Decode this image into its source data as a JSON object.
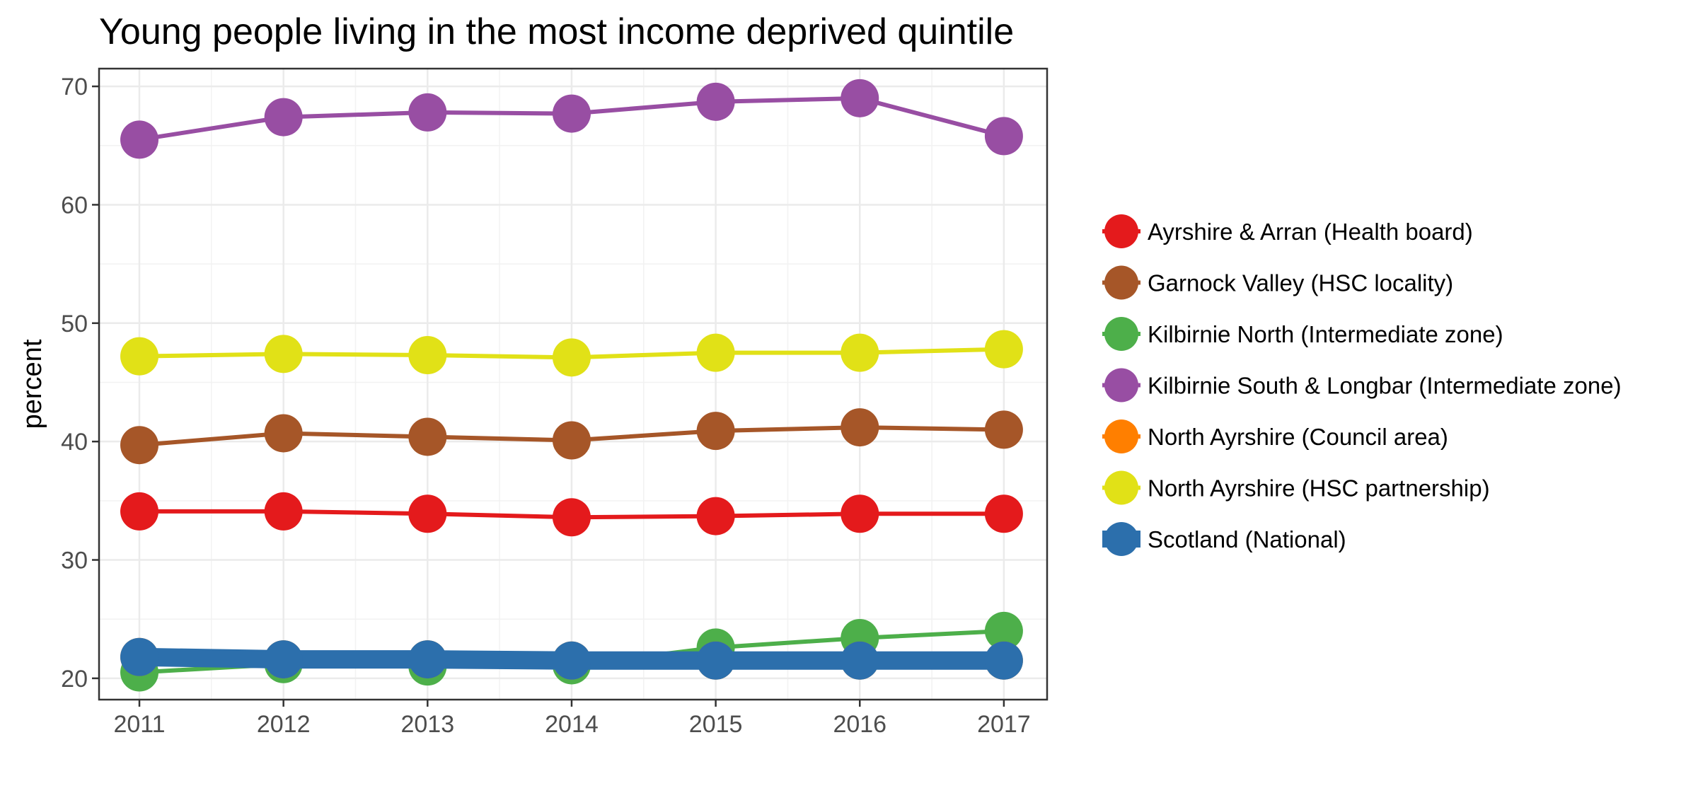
{
  "chart_data": {
    "type": "line",
    "title": "Young people living in the most income deprived quintile",
    "xlabel": "",
    "ylabel": "percent",
    "x": [
      2011,
      2012,
      2013,
      2014,
      2015,
      2016,
      2017
    ],
    "xlim": [
      2010.72,
      2017.3
    ],
    "ylim": [
      18.2,
      71.5
    ],
    "yticks": [
      20,
      30,
      40,
      50,
      60,
      70
    ],
    "grid": true,
    "legend_position": "right",
    "series": [
      {
        "name": "Ayrshire & Arran (Health board)",
        "color": "#e41a1c",
        "width": 6,
        "values": [
          34.1,
          34.1,
          33.9,
          33.6,
          33.7,
          33.9,
          33.9
        ]
      },
      {
        "name": "Garnock Valley (HSC locality)",
        "color": "#a65628",
        "width": 6,
        "values": [
          39.7,
          40.7,
          40.4,
          40.1,
          40.9,
          41.2,
          41.0
        ]
      },
      {
        "name": "Kilbirnie North (Intermediate zone)",
        "color": "#4daf4a",
        "width": 6,
        "values": [
          20.5,
          21.2,
          21.0,
          21.1,
          22.6,
          23.4,
          24.0
        ]
      },
      {
        "name": "Kilbirnie South & Longbar (Intermediate zone)",
        "color": "#984ea3",
        "width": 6,
        "values": [
          65.5,
          67.4,
          67.8,
          67.7,
          68.7,
          69.0,
          65.8
        ]
      },
      {
        "name": "North Ayrshire (Council area)",
        "color": "#ff7f00",
        "width": 6,
        "values": [
          21.8,
          21.6,
          21.6,
          21.5,
          21.5,
          21.5,
          21.5
        ]
      },
      {
        "name": "North Ayrshire (HSC partnership)",
        "color": "#e1e117",
        "width": 6,
        "values": [
          47.2,
          47.4,
          47.3,
          47.1,
          47.5,
          47.5,
          47.8
        ]
      },
      {
        "name": "Scotland (National)",
        "color": "#2c6fac",
        "width": 26,
        "values": [
          21.8,
          21.6,
          21.6,
          21.5,
          21.5,
          21.5,
          21.5
        ]
      }
    ]
  }
}
